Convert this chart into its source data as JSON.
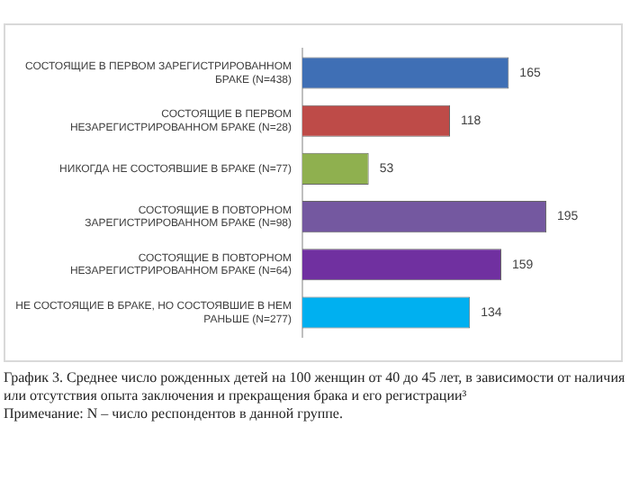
{
  "chart_data": {
    "type": "bar",
    "orientation": "horizontal",
    "categories": [
      "СОСТОЯЩИЕ В ПЕРВОМ ЗАРЕГИСТРИРОВАННОМ БРАКЕ (N=438)",
      "СОСТОЯЩИЕ В ПЕРВОМ НЕЗАРЕГИСТРИРОВАННОМ БРАКЕ (N=28)",
      "НИКОГДА НЕ СОСТОЯВШИЕ В БРАКЕ (N=77)",
      "СОСТОЯЩИЕ В ПОВТОРНОМ ЗАРЕГИСТРИРОВАННОМ БРАКЕ (N=98)",
      "СОСТОЯЩИЕ В ПОВТОРНОМ НЕЗАРЕГИСТРИРОВАННОМ БРАКЕ (N=64)",
      "НЕ СОСТОЯЩИЕ В БРАКЕ, НО СОСТОЯВШИЕ В НЕМ РАНЬШЕ (N=277)"
    ],
    "values": [
      165,
      118,
      53,
      195,
      159,
      134
    ],
    "colors": [
      "#3f6fb5",
      "#be4b48",
      "#8fb04f",
      "#7458a0",
      "#7030a0",
      "#00b0f0"
    ],
    "data_labels": true,
    "annotations": [
      "График 3. Среднее число рожденных детей на 100 женщин от 40 до 45 лет, в зависимости от наличия или отсутствия опыта заключения и прекращения брака и его регистрации³",
      "Примечание: N – число респондентов в данной группе."
    ]
  }
}
